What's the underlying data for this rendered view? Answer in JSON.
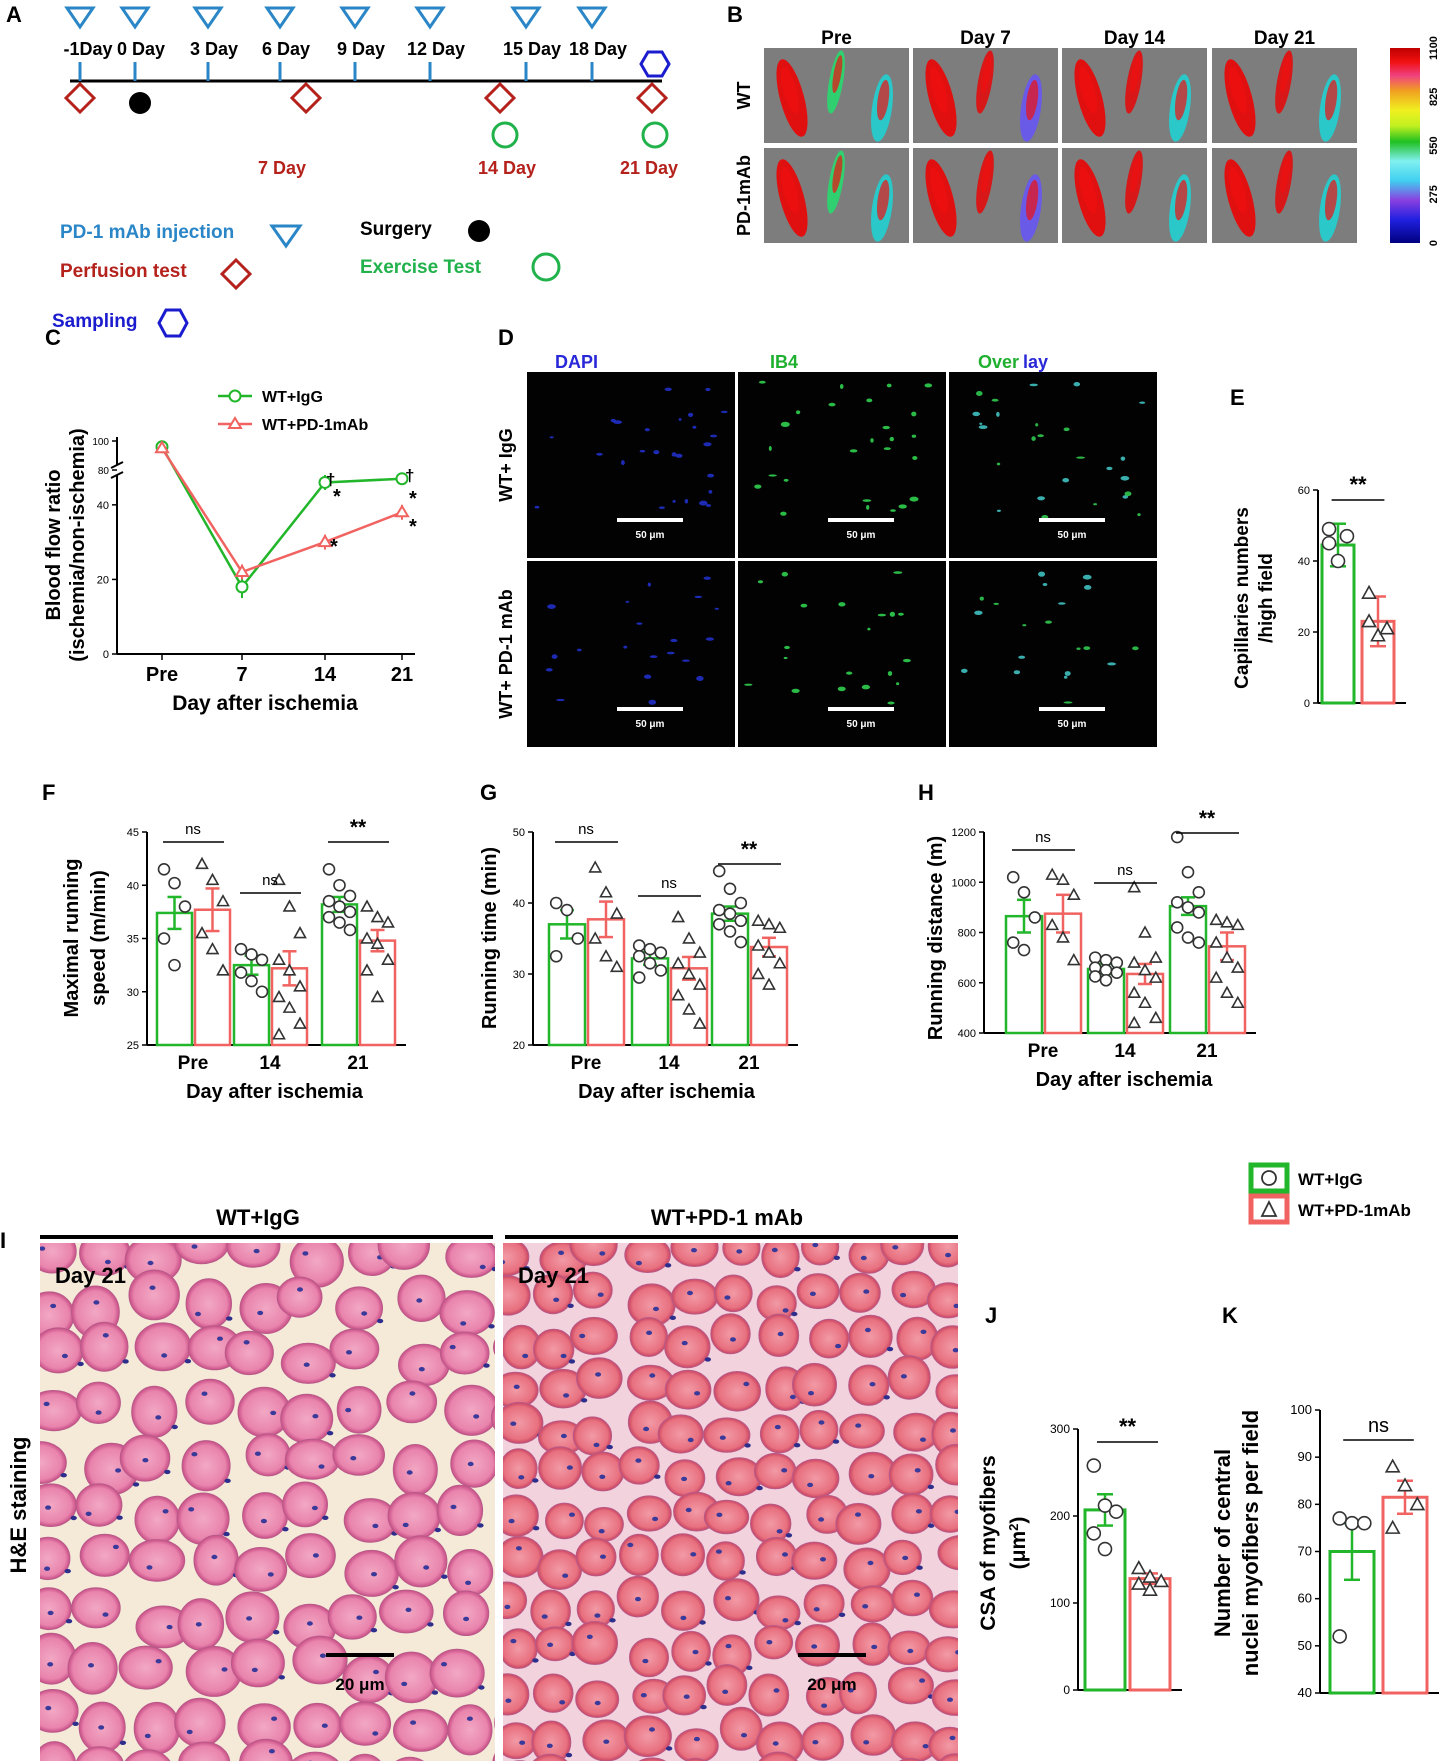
{
  "panels": {
    "A": "A",
    "B": "B",
    "C": "C",
    "D": "D",
    "E": "E",
    "F": "F",
    "G": "G",
    "H": "H",
    "I": "I",
    "J": "J",
    "K": "K"
  },
  "colors": {
    "wt_igg": "#22b62b",
    "wt_pd1": "#f06360",
    "injection": "#2a86c7",
    "perfusion": "#b5221c",
    "surgery": "#000000",
    "exercise": "#22b24c",
    "sampling": "#1c1ccf",
    "timeline_axis": "#000000"
  },
  "timeline": {
    "days": [
      "-1Day",
      "0 Day",
      "3 Day",
      "6 Day",
      "9 Day",
      "12 Day",
      "15 Day",
      "18 Day"
    ],
    "red_labels": [
      "7 Day",
      "14 Day",
      "21 Day"
    ],
    "legend": {
      "injection": "PD-1 mAb injection",
      "perfusion": "Perfusion test",
      "sampling": "Sampling",
      "surgery": "Surgery",
      "exercise": "Exercise Test"
    }
  },
  "perfusion_images": {
    "columns": [
      "Pre",
      "Day 7",
      "Day 14",
      "Day 21"
    ],
    "rows": [
      "WT",
      "PD-1mAb"
    ],
    "scale_ticks": [
      "1100",
      "825",
      "550",
      "275",
      "0"
    ]
  },
  "fluorescence": {
    "columns": [
      "DAPI",
      "IB4"
    ],
    "overlay_a": "Over",
    "overlay_b": "lay",
    "rows": [
      "WT+ IgG",
      "WT+ PD-1 mAb"
    ],
    "scalebar": "50 μm"
  },
  "histology": {
    "columns": [
      "WT+IgG",
      "WT+PD-1 mAb"
    ],
    "day": "Day 21",
    "side_label": "H&E staining",
    "scalebar": "20 μm"
  },
  "legend_groups": [
    "WT+IgG",
    "WT+PD-1mAb"
  ],
  "chart_data": [
    {
      "panel": "C",
      "type": "line",
      "xlabel": "Day after  ischemia",
      "ylabel_line1": "Blood flow ratio",
      "ylabel_line2": "(ischemia/non-ischemia)",
      "categories": [
        "Pre",
        "7",
        "14",
        "21"
      ],
      "yticks_lower": [
        "0",
        "20",
        "40"
      ],
      "yticks_upper": [
        "80",
        "100"
      ],
      "series": [
        {
          "name": "WT+IgG",
          "values": [
            96,
            18,
            46,
            47
          ],
          "errors": [
            0,
            3,
            2,
            1
          ]
        },
        {
          "name": "WT+PD-1mAb",
          "values": [
            95,
            22,
            30,
            38
          ],
          "errors": [
            0,
            2,
            2,
            2
          ]
        }
      ],
      "marks_upper": [
        "†",
        "†"
      ],
      "marks_lower": [
        "*",
        "*",
        "*",
        "*"
      ]
    },
    {
      "panel": "E",
      "type": "bar",
      "ylabel_line1": "Capillaries numbers",
      "ylabel_line2": "/high field",
      "ylim": [
        0,
        60
      ],
      "yticks": [
        "0",
        "20",
        "40",
        "60"
      ],
      "significance": "**",
      "series": [
        {
          "name": "WT+IgG",
          "value": 44.5,
          "error": 6,
          "points": [
            45,
            40,
            47,
            49
          ]
        },
        {
          "name": "WT+PD-1mAb",
          "value": 23,
          "error": 7,
          "points": [
            31,
            19,
            21,
            23
          ]
        }
      ]
    },
    {
      "panel": "F",
      "type": "bar",
      "xlabel": "Day after ischemia",
      "ylabel_line1": "Maximal running",
      "ylabel_line2": "speed (m/min)",
      "ylim": [
        25,
        45
      ],
      "yticks": [
        "25",
        "30",
        "35",
        "40",
        "45"
      ],
      "categories": [
        "Pre",
        "14",
        "21"
      ],
      "significance": [
        "ns",
        "ns",
        "**"
      ],
      "series": [
        {
          "name": "WT+IgG",
          "values": [
            37.4,
            32.5,
            38.2
          ],
          "errors": [
            1.5,
            0.9,
            0.7
          ],
          "points": [
            [
              41.5,
              40.2,
              38.0,
              35.0,
              32.5
            ],
            [
              34.0,
              33.5,
              33.0,
              31.8,
              31.0,
              30.0
            ],
            [
              41.5,
              40.0,
              39.0,
              38.5,
              38.0,
              37.5,
              37.0,
              36.5,
              35.8
            ]
          ]
        },
        {
          "name": "WT+PD-1mAb",
          "values": [
            37.7,
            32.2,
            34.8
          ],
          "errors": [
            2.0,
            1.6,
            1.0
          ],
          "points": [
            [
              42.0,
              40.5,
              38.5,
              35.5,
              34.0,
              32.0
            ],
            [
              40.5,
              38.0,
              35.5,
              33.0,
              32.0,
              30.5,
              29.5,
              28.5,
              27.0,
              26.0
            ],
            [
              38.0,
              37.0,
              36.5,
              35.0,
              34.5,
              33.0,
              32.0,
              29.5
            ]
          ]
        }
      ]
    },
    {
      "panel": "G",
      "type": "bar",
      "xlabel": "Day after ischemia",
      "ylabel_line1": "Running time (min)",
      "ylim": [
        20,
        50
      ],
      "yticks": [
        "20",
        "30",
        "40",
        "50"
      ],
      "categories": [
        "Pre",
        "14",
        "21"
      ],
      "significance": [
        "ns",
        "ns",
        "**"
      ],
      "series": [
        {
          "name": "WT+IgG",
          "values": [
            37.0,
            32.2,
            38.5
          ],
          "errors": [
            2.0,
            0.9,
            1.0
          ],
          "points": [
            [
              40.0,
              39.0,
              35.0,
              32.5
            ],
            [
              34.0,
              33.5,
              33.0,
              32.5,
              31.5,
              30.5,
              29.5
            ],
            [
              44.5,
              42.0,
              40.0,
              39.0,
              38.5,
              37.5,
              37.0,
              36.0,
              34.5
            ]
          ]
        },
        {
          "name": "WT+PD-1mAb",
          "values": [
            37.7,
            30.8,
            33.8
          ],
          "errors": [
            2.5,
            1.6,
            1.3
          ],
          "points": [
            [
              45.0,
              41.5,
              38.5,
              35.0,
              32.5,
              31.0
            ],
            [
              38.0,
              35.0,
              33.0,
              31.5,
              30.0,
              28.5,
              27.0,
              25.0,
              23.0
            ],
            [
              37.5,
              37.0,
              36.5,
              34.0,
              33.0,
              31.5,
              30.0,
              28.5
            ]
          ]
        }
      ]
    },
    {
      "panel": "H",
      "type": "bar",
      "xlabel": "Day after ischemia",
      "ylabel_line1": "Running distance (m)",
      "ylim": [
        400,
        1200
      ],
      "yticks": [
        "400",
        "600",
        "800",
        "1000",
        "1200"
      ],
      "categories": [
        "Pre",
        "14",
        "21"
      ],
      "significance": [
        "ns",
        "ns",
        "**"
      ],
      "series": [
        {
          "name": "WT+IgG",
          "values": [
            865,
            655,
            905
          ],
          "errors": [
            65,
            20,
            35
          ],
          "points": [
            [
              1020,
              960,
              860,
              760,
              730
            ],
            [
              700,
              690,
              680,
              660,
              650,
              640,
              625,
              610
            ],
            [
              1180,
              1040,
              960,
              920,
              900,
              880,
              820,
              780,
              760
            ]
          ]
        },
        {
          "name": "WT+PD-1mAb",
          "values": [
            875,
            635,
            745
          ],
          "errors": [
            75,
            40,
            55
          ],
          "points": [
            [
              1030,
              1010,
              950,
              830,
              780,
              690
            ],
            [
              980,
              800,
              700,
              680,
              650,
              620,
              560,
              520,
              460,
              440
            ],
            [
              850,
              840,
              830,
              760,
              700,
              660,
              620,
              560,
              520
            ]
          ]
        }
      ]
    },
    {
      "panel": "J",
      "type": "bar",
      "ylabel_line1": "CSA of myofibers",
      "ylabel_line2": "(μm²)",
      "ylim": [
        0,
        300
      ],
      "yticks": [
        "0",
        "100",
        "200",
        "300"
      ],
      "significance": "**",
      "series": [
        {
          "name": "WT+IgG",
          "value": 207,
          "error": 18,
          "points": [
            258,
            212,
            205,
            180,
            162
          ]
        },
        {
          "name": "WT+PD-1mAb",
          "value": 128,
          "error": 6,
          "points": [
            140,
            130,
            125,
            122,
            115
          ]
        }
      ]
    },
    {
      "panel": "K",
      "type": "bar",
      "ylabel_line1": "Number of central",
      "ylabel_line2": "nuclei myofibers per field",
      "ylim": [
        40,
        100
      ],
      "yticks": [
        "40",
        "50",
        "60",
        "70",
        "80",
        "90",
        "100"
      ],
      "significance": "ns",
      "series": [
        {
          "name": "WT+IgG",
          "value": 70,
          "error": 6,
          "points": [
            77,
            76,
            76,
            52
          ]
        },
        {
          "name": "WT+PD-1mAb",
          "value": 81.5,
          "error": 3.5,
          "points": [
            88,
            84,
            80,
            75
          ]
        }
      ]
    }
  ]
}
